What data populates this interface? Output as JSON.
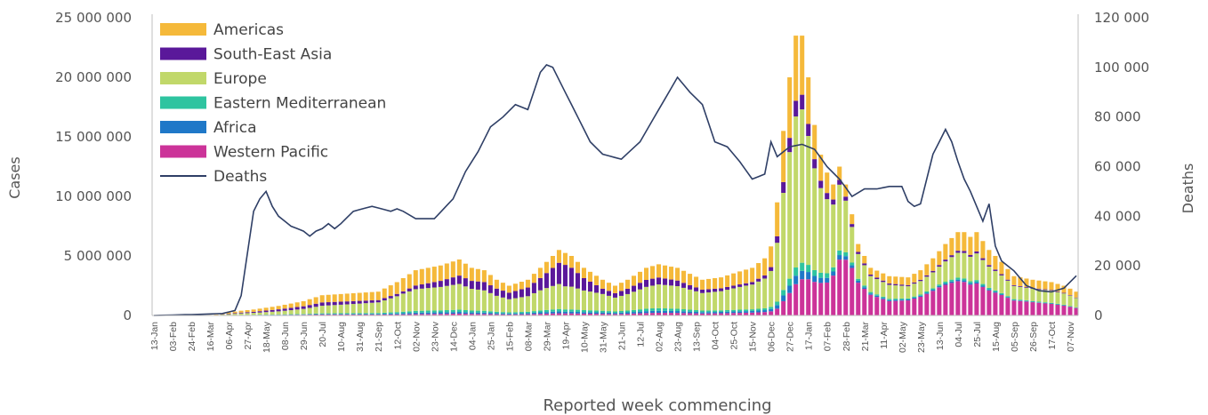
{
  "chart_data": {
    "type": "bar",
    "stacked": true,
    "xlabel": "Reported week commencing",
    "ylabel": "Cases",
    "y2label": "Deaths",
    "ylim": [
      0,
      25000000
    ],
    "y2lim": [
      0,
      120000
    ],
    "yticks": [
      0,
      5000000,
      10000000,
      15000000,
      20000000,
      25000000
    ],
    "ytick_labels": [
      "0",
      "5 000 000",
      "10 000 000",
      "15 000 000",
      "20 000 000",
      "25 000 000"
    ],
    "y2ticks": [
      0,
      20000,
      40000,
      60000,
      80000,
      100000,
      120000
    ],
    "y2tick_labels": [
      "0",
      "20 000",
      "40 000",
      "60 000",
      "80 000",
      "100 000",
      "120 000"
    ],
    "x_tick_labels": [
      "13-Jan",
      "03-Feb",
      "24-Feb",
      "16-Mar",
      "06-Apr",
      "27-Apr",
      "18-May",
      "08-Jun",
      "29-Jun",
      "20-Jul",
      "10-Aug",
      "31-Aug",
      "21-Sep",
      "12-Oct",
      "02-Nov",
      "23-Nov",
      "14-Dec",
      "04-Jan",
      "25-Jan",
      "15-Feb",
      "08-Mar",
      "29-Mar",
      "19-Apr",
      "10-May",
      "31-May",
      "21-Jun",
      "12-Jul",
      "02-Aug",
      "23-Aug",
      "13-Sep",
      "04-Oct",
      "25-Oct",
      "15-Nov",
      "06-Dec",
      "27-Dec",
      "17-Jan",
      "07-Feb",
      "28-Feb",
      "21-Mar",
      "11-Apr",
      "02-May",
      "23-May",
      "13-Jun",
      "04-Jul",
      "25-Jul",
      "15-Aug",
      "05-Sep",
      "26-Sep",
      "17-Oct",
      "07-Nov"
    ],
    "legend_position": "top-left",
    "grid": false,
    "colors": {
      "Americas": "#f5b93a",
      "South-East Asia": "#5a189a",
      "Europe": "#c1d86a",
      "Eastern Mediterranean": "#2ec4a0",
      "Africa": "#1f78c8",
      "Western Pacific": "#cc3399",
      "Deaths": "#2f3f66"
    },
    "legend": [
      "Americas",
      "South-East Asia",
      "Europe",
      "Eastern Mediterranean",
      "Africa",
      "Western Pacific",
      "Deaths"
    ],
    "stack_order": [
      "Western Pacific",
      "Africa",
      "Eastern Mediterranean",
      "Europe",
      "South-East Asia",
      "Americas"
    ],
    "total_cases_anchors": [
      [
        0,
        0
      ],
      [
        8,
        10000
      ],
      [
        10,
        80000
      ],
      [
        12,
        250000
      ],
      [
        14,
        400000
      ],
      [
        16,
        500000
      ],
      [
        20,
        800000
      ],
      [
        24,
        1200000
      ],
      [
        27,
        1700000
      ],
      [
        30,
        1800000
      ],
      [
        33,
        1900000
      ],
      [
        36,
        2000000
      ],
      [
        39,
        2800000
      ],
      [
        42,
        3800000
      ],
      [
        46,
        4200000
      ],
      [
        49,
        4700000
      ],
      [
        51,
        4000000
      ],
      [
        53,
        3800000
      ],
      [
        55,
        3000000
      ],
      [
        57,
        2500000
      ],
      [
        60,
        3000000
      ],
      [
        63,
        4500000
      ],
      [
        65,
        5500000
      ],
      [
        67,
        5000000
      ],
      [
        69,
        4000000
      ],
      [
        72,
        3000000
      ],
      [
        74,
        2500000
      ],
      [
        76,
        3000000
      ],
      [
        79,
        4000000
      ],
      [
        81,
        4300000
      ],
      [
        84,
        4000000
      ],
      [
        86,
        3500000
      ],
      [
        88,
        3000000
      ],
      [
        91,
        3200000
      ],
      [
        94,
        3700000
      ],
      [
        96,
        4000000
      ],
      [
        98,
        4800000
      ],
      [
        99,
        5800000
      ],
      [
        100,
        9500000
      ],
      [
        101,
        15500000
      ],
      [
        102,
        20000000
      ],
      [
        103,
        23500000
      ],
      [
        104,
        23500000
      ],
      [
        105,
        20000000
      ],
      [
        106,
        16000000
      ],
      [
        107,
        13500000
      ],
      [
        108,
        12000000
      ],
      [
        109,
        11000000
      ],
      [
        110,
        12500000
      ],
      [
        111,
        11000000
      ],
      [
        112,
        8500000
      ],
      [
        113,
        6000000
      ],
      [
        115,
        4000000
      ],
      [
        118,
        3300000
      ],
      [
        121,
        3200000
      ],
      [
        123,
        3800000
      ],
      [
        125,
        4800000
      ],
      [
        127,
        6000000
      ],
      [
        129,
        7000000
      ],
      [
        130,
        7000000
      ],
      [
        131,
        6600000
      ],
      [
        132,
        7000000
      ],
      [
        134,
        5500000
      ],
      [
        136,
        4500000
      ],
      [
        138,
        3300000
      ],
      [
        141,
        3000000
      ],
      [
        144,
        2800000
      ],
      [
        146,
        2500000
      ],
      [
        148,
        2000000
      ]
    ],
    "region_share_anchors": {
      "Americas": [
        [
          0,
          0.5
        ],
        [
          40,
          0.35
        ],
        [
          60,
          0.25
        ],
        [
          80,
          0.25
        ],
        [
          100,
          0.3
        ],
        [
          110,
          0.08
        ],
        [
          125,
          0.22
        ],
        [
          148,
          0.25
        ]
      ],
      "South-East Asia": [
        [
          0,
          0.05
        ],
        [
          20,
          0.25
        ],
        [
          40,
          0.06
        ],
        [
          62,
          0.3
        ],
        [
          66,
          0.45
        ],
        [
          72,
          0.15
        ],
        [
          78,
          0.15
        ],
        [
          95,
          0.05
        ],
        [
          102,
          0.06
        ],
        [
          110,
          0.03
        ],
        [
          148,
          0.02
        ]
      ],
      "Europe": [
        [
          0,
          0.3
        ],
        [
          40,
          0.48
        ],
        [
          60,
          0.5
        ],
        [
          80,
          0.45
        ],
        [
          100,
          0.52
        ],
        [
          104,
          0.55
        ],
        [
          110,
          0.4
        ],
        [
          115,
          0.3
        ],
        [
          125,
          0.28
        ],
        [
          148,
          0.4
        ]
      ],
      "Eastern Mediterranean": [
        [
          0,
          0.03
        ],
        [
          80,
          0.05
        ],
        [
          100,
          0.03
        ],
        [
          148,
          0.02
        ]
      ],
      "Africa": [
        [
          0,
          0.02
        ],
        [
          80,
          0.04
        ],
        [
          104,
          0.03
        ],
        [
          148,
          0.01
        ]
      ],
      "Western Pacific": [
        [
          0,
          0.1
        ],
        [
          40,
          0.03
        ],
        [
          80,
          0.05
        ],
        [
          100,
          0.06
        ],
        [
          108,
          0.2
        ],
        [
          112,
          0.48
        ],
        [
          118,
          0.3
        ],
        [
          126,
          0.45
        ],
        [
          132,
          0.38
        ],
        [
          140,
          0.4
        ],
        [
          148,
          0.32
        ]
      ]
    },
    "deaths_anchors": [
      [
        0,
        0
      ],
      [
        8,
        500
      ],
      [
        11,
        800
      ],
      [
        13,
        2000
      ],
      [
        14,
        8000
      ],
      [
        15,
        25000
      ],
      [
        16,
        42000
      ],
      [
        17,
        47000
      ],
      [
        18,
        50000
      ],
      [
        19,
        44000
      ],
      [
        20,
        40000
      ],
      [
        22,
        36000
      ],
      [
        24,
        34000
      ],
      [
        25,
        32000
      ],
      [
        26,
        34000
      ],
      [
        27,
        35000
      ],
      [
        28,
        37000
      ],
      [
        29,
        35000
      ],
      [
        30,
        37000
      ],
      [
        32,
        42000
      ],
      [
        35,
        44000
      ],
      [
        38,
        42000
      ],
      [
        39,
        43000
      ],
      [
        40,
        42000
      ],
      [
        42,
        39000
      ],
      [
        45,
        39000
      ],
      [
        48,
        47000
      ],
      [
        50,
        58000
      ],
      [
        52,
        66000
      ],
      [
        54,
        76000
      ],
      [
        56,
        80000
      ],
      [
        58,
        85000
      ],
      [
        60,
        83000
      ],
      [
        62,
        98000
      ],
      [
        63,
        101000
      ],
      [
        64,
        100000
      ],
      [
        66,
        90000
      ],
      [
        68,
        80000
      ],
      [
        70,
        70000
      ],
      [
        72,
        65000
      ],
      [
        75,
        63000
      ],
      [
        78,
        70000
      ],
      [
        81,
        83000
      ],
      [
        84,
        96000
      ],
      [
        86,
        90000
      ],
      [
        88,
        85000
      ],
      [
        90,
        70000
      ],
      [
        92,
        68000
      ],
      [
        94,
        62000
      ],
      [
        96,
        55000
      ],
      [
        98,
        57000
      ],
      [
        99,
        70000
      ],
      [
        100,
        64000
      ],
      [
        102,
        68000
      ],
      [
        104,
        69000
      ],
      [
        106,
        67000
      ],
      [
        108,
        60000
      ],
      [
        110,
        55000
      ],
      [
        112,
        48000
      ],
      [
        114,
        51000
      ],
      [
        116,
        51000
      ],
      [
        118,
        52000
      ],
      [
        120,
        52000
      ],
      [
        121,
        46000
      ],
      [
        122,
        44000
      ],
      [
        123,
        45000
      ],
      [
        124,
        55000
      ],
      [
        125,
        65000
      ],
      [
        126,
        70000
      ],
      [
        127,
        75000
      ],
      [
        128,
        70000
      ],
      [
        129,
        62000
      ],
      [
        130,
        55000
      ],
      [
        131,
        50000
      ],
      [
        132,
        44000
      ],
      [
        133,
        38000
      ],
      [
        134,
        45000
      ],
      [
        135,
        28000
      ],
      [
        136,
        22000
      ],
      [
        138,
        18000
      ],
      [
        140,
        12000
      ],
      [
        142,
        10000
      ],
      [
        144,
        9500
      ],
      [
        146,
        11000
      ],
      [
        148,
        16000
      ],
      [
        150,
        18000
      ],
      [
        152,
        16000
      ],
      [
        154,
        13000
      ],
      [
        156,
        11000
      ],
      [
        158,
        11000
      ],
      [
        160,
        10000
      ],
      [
        161,
        7000
      ]
    ],
    "n_weeks": 149
  }
}
